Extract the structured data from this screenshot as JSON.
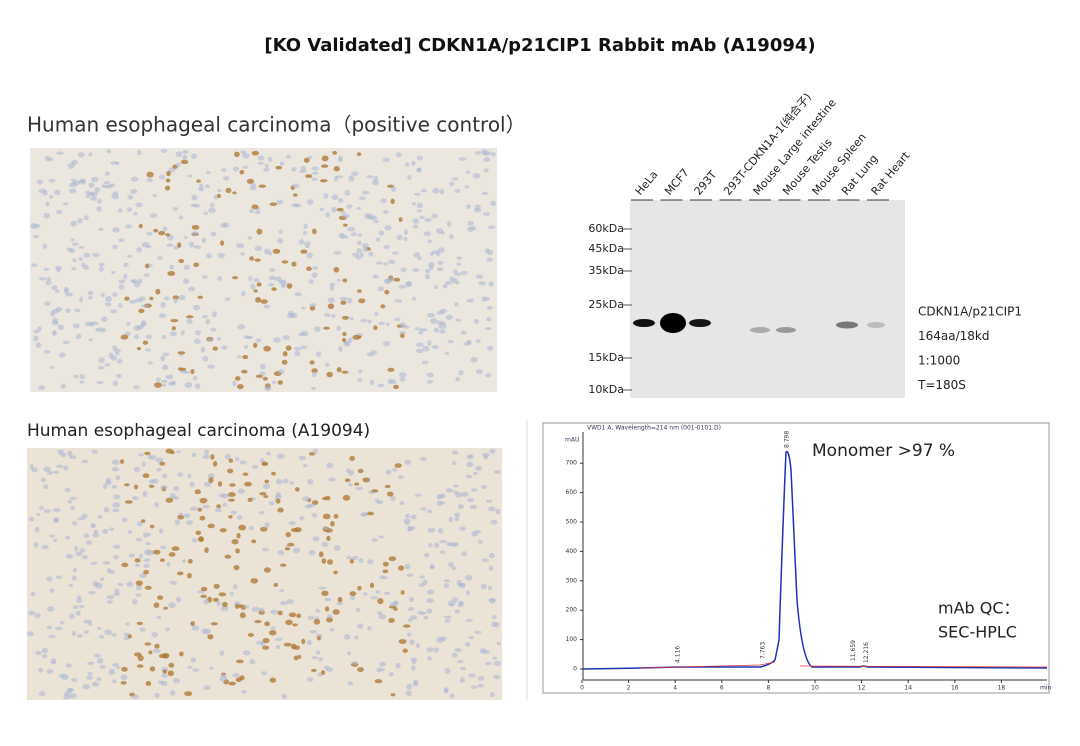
{
  "title": "[KO Validated] CDKN1A/p21CIP1 Rabbit mAb (A19094)",
  "ihc_top": {
    "label": "Human esophageal carcinoma（positive control）"
  },
  "ihc_bottom": {
    "label": "Human esophageal carcinoma (A19094)"
  },
  "western": {
    "lanes": [
      "HeLa",
      "MCF7",
      "293T",
      "293T-CDKN1A-1(纯合子)",
      "Mouse Large intestine",
      "Mouse Testis",
      "Mouse Spleen",
      "Rat Lung",
      "Rat Heart"
    ],
    "markers": [
      "60kDa",
      "45kDa",
      "35kDa",
      "25kDa",
      "15kDa",
      "10kDa"
    ],
    "annotations": [
      "CDKN1A/p21CIP1",
      "164aa/18kd",
      "1:1000",
      "T=180S"
    ]
  },
  "hplc": {
    "header": "VWD1 A, Wavelength=214 nm (001-0101.D)",
    "y_unit": "mAU",
    "x_unit": "min",
    "yticks": [
      0,
      100,
      200,
      300,
      400,
      500,
      600,
      700
    ],
    "xticks": [
      0,
      2,
      4,
      6,
      8,
      10,
      12,
      14,
      16,
      18
    ],
    "peaks": [
      "4.116",
      "7.763",
      "8.798",
      "11.659",
      "12.216"
    ],
    "annotation": "Monomer >97 %",
    "qc": [
      "mAb QC：",
      "SEC-HPLC"
    ]
  }
}
